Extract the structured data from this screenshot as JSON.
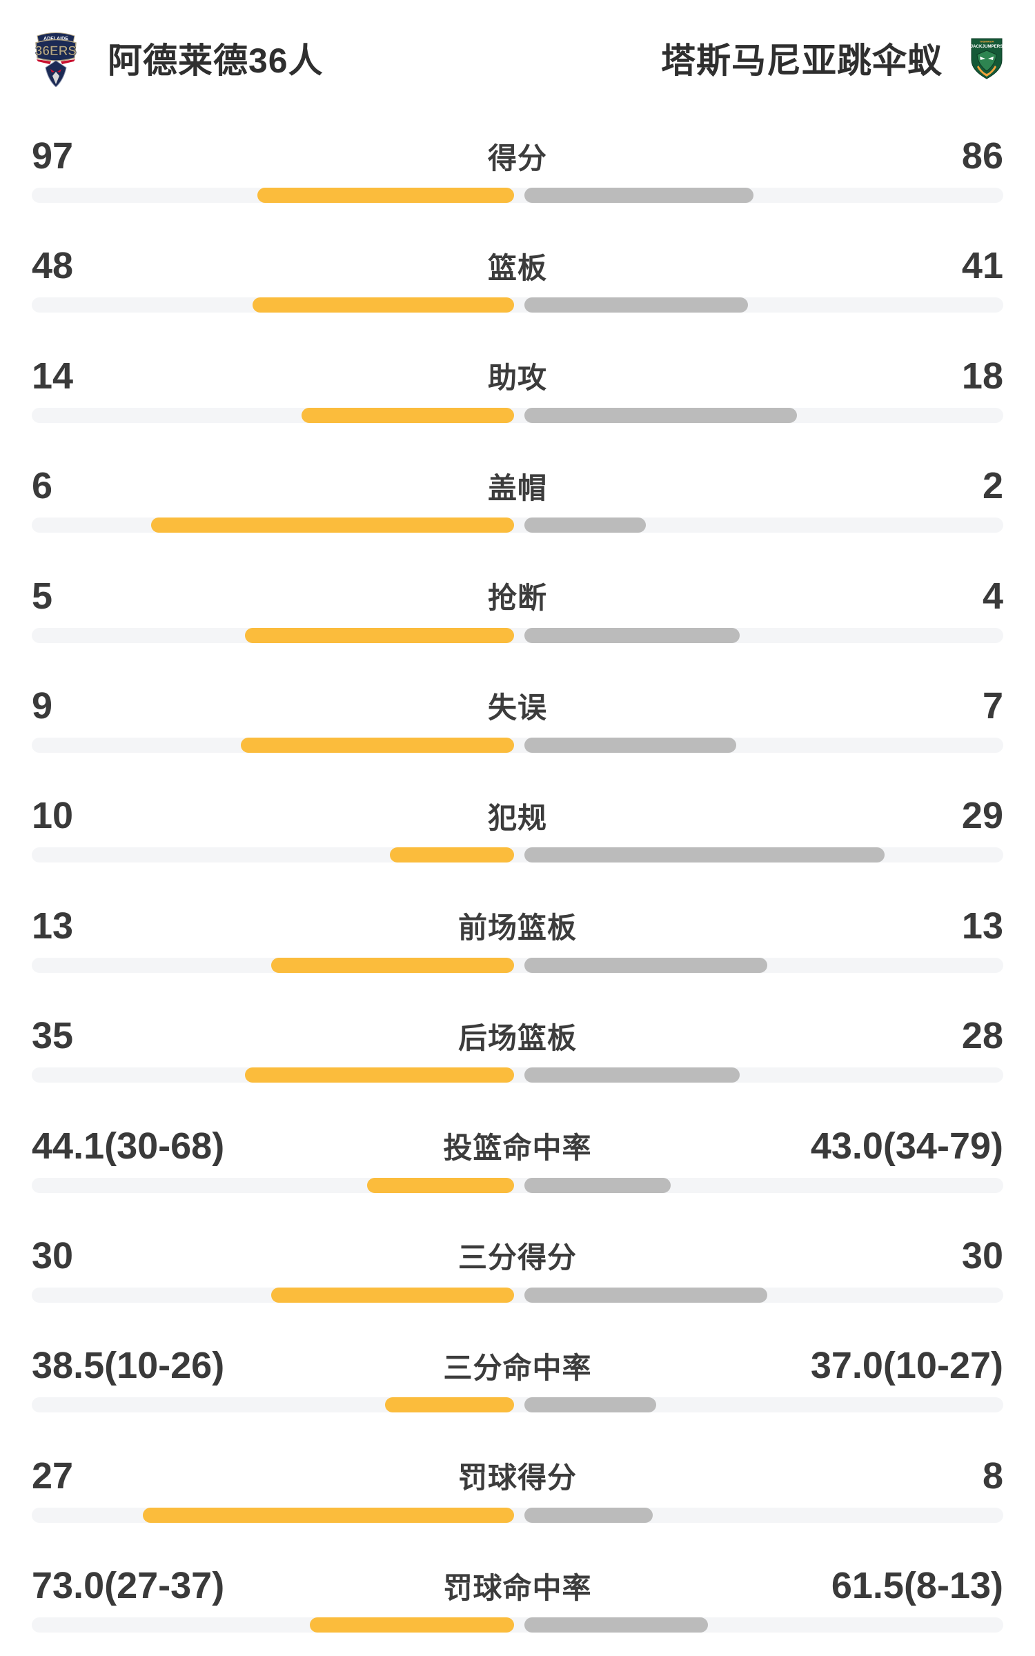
{
  "header": {
    "home": {
      "name": "阿德莱德36人",
      "logo_banner": "ADELAIDE",
      "logo_text": "36ERS"
    },
    "away": {
      "name": "塔斯马尼亚跳伞蚁",
      "logo_banner": "TASMANIA",
      "logo_text": "JACKJUMPERS"
    }
  },
  "colors": {
    "home_bar": "#fbbc3c",
    "away_bar": "#bbbbbb",
    "track": "#f4f5f7",
    "text": "#3a3a3a",
    "home_logo_navy": "#1b2a55",
    "home_logo_red": "#c8102e",
    "home_logo_tan": "#b3a584",
    "away_logo_green": "#155937",
    "away_logo_light_green": "#2e8551",
    "away_logo_orange": "#f2a33c"
  },
  "stats": [
    {
      "label": "得分",
      "home": "97",
      "away": "86",
      "home_pct": 26.4,
      "away_pct": 23.6
    },
    {
      "label": "篮板",
      "home": "48",
      "away": "41",
      "home_pct": 26.9,
      "away_pct": 23.0
    },
    {
      "label": "助攻",
      "home": "14",
      "away": "18",
      "home_pct": 21.9,
      "away_pct": 28.1
    },
    {
      "label": "盖帽",
      "home": "6",
      "away": "2",
      "home_pct": 37.4,
      "away_pct": 12.5
    },
    {
      "label": "抢断",
      "home": "5",
      "away": "4",
      "home_pct": 27.7,
      "away_pct": 22.2
    },
    {
      "label": "失误",
      "home": "9",
      "away": "7",
      "home_pct": 28.1,
      "away_pct": 21.8
    },
    {
      "label": "犯规",
      "home": "10",
      "away": "29",
      "home_pct": 12.8,
      "away_pct": 37.1
    },
    {
      "label": "前场篮板",
      "home": "13",
      "away": "13",
      "home_pct": 25.0,
      "away_pct": 25.0
    },
    {
      "label": "后场篮板",
      "home": "35",
      "away": "28",
      "home_pct": 27.7,
      "away_pct": 22.2
    },
    {
      "label": "投篮命中率",
      "home": "44.1(30-68)",
      "away": "43.0(34-79)",
      "home_pct": 15.1,
      "away_pct": 15.1
    },
    {
      "label": "三分得分",
      "home": "30",
      "away": "30",
      "home_pct": 25.0,
      "away_pct": 25.0
    },
    {
      "label": "三分命中率",
      "home": "38.5(10-26)",
      "away": "37.0(10-27)",
      "home_pct": 13.3,
      "away_pct": 13.6
    },
    {
      "label": "罚球得分",
      "home": "27",
      "away": "8",
      "home_pct": 38.2,
      "away_pct": 13.2
    },
    {
      "label": "罚球命中率",
      "home": "73.0(27-37)",
      "away": "61.5(8-13)",
      "home_pct": 21.0,
      "away_pct": 18.9
    }
  ],
  "chart_data": {
    "type": "bar",
    "orientation": "horizontal-paired",
    "categories": [
      "得分",
      "篮板",
      "助攻",
      "盖帽",
      "抢断",
      "失误",
      "犯规",
      "前场篮板",
      "后场篮板",
      "投篮命中率",
      "三分得分",
      "三分命中率",
      "罚球得分",
      "罚球命中率"
    ],
    "series": [
      {
        "name": "阿德莱德36人",
        "values": [
          97,
          48,
          14,
          6,
          5,
          9,
          10,
          13,
          35,
          44.1,
          30,
          38.5,
          27,
          73.0
        ]
      },
      {
        "name": "塔斯马尼亚跳伞蚁",
        "values": [
          86,
          41,
          18,
          2,
          4,
          7,
          29,
          13,
          28,
          43.0,
          30,
          37.0,
          8,
          61.5
        ]
      }
    ],
    "legend_position": "top",
    "grid": false
  }
}
